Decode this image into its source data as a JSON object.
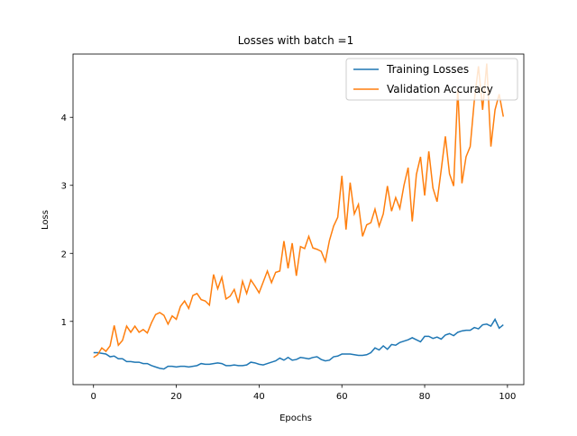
{
  "chart_data": {
    "type": "line",
    "title": "Losses with batch =1",
    "x_label": "Epochs",
    "y_label": "Loss",
    "x": [
      0,
      1,
      2,
      3,
      4,
      5,
      6,
      7,
      8,
      9,
      10,
      11,
      12,
      13,
      14,
      15,
      16,
      17,
      18,
      19,
      20,
      21,
      22,
      23,
      24,
      25,
      26,
      27,
      28,
      29,
      30,
      31,
      32,
      33,
      34,
      35,
      36,
      37,
      38,
      39,
      40,
      41,
      42,
      43,
      44,
      45,
      46,
      47,
      48,
      49,
      50,
      51,
      52,
      53,
      54,
      55,
      56,
      57,
      58,
      59,
      60,
      61,
      62,
      63,
      64,
      65,
      66,
      67,
      68,
      69,
      70,
      71,
      72,
      73,
      74,
      75,
      76,
      77,
      78,
      79,
      80,
      81,
      82,
      83,
      84,
      85,
      86,
      87,
      88,
      89,
      90,
      91,
      92,
      93,
      94,
      95,
      96,
      97,
      98,
      99
    ],
    "series": [
      {
        "name": "Training Losses",
        "color": "#1f77b4",
        "values": [
          0.54,
          0.54,
          0.53,
          0.52,
          0.48,
          0.49,
          0.45,
          0.45,
          0.41,
          0.41,
          0.4,
          0.4,
          0.38,
          0.38,
          0.35,
          0.33,
          0.31,
          0.3,
          0.34,
          0.34,
          0.33,
          0.34,
          0.34,
          0.33,
          0.34,
          0.35,
          0.38,
          0.37,
          0.37,
          0.38,
          0.39,
          0.38,
          0.35,
          0.35,
          0.36,
          0.35,
          0.35,
          0.36,
          0.4,
          0.39,
          0.37,
          0.36,
          0.38,
          0.4,
          0.42,
          0.46,
          0.43,
          0.47,
          0.43,
          0.44,
          0.47,
          0.46,
          0.45,
          0.47,
          0.48,
          0.44,
          0.42,
          0.43,
          0.48,
          0.49,
          0.52,
          0.52,
          0.52,
          0.51,
          0.5,
          0.5,
          0.51,
          0.54,
          0.61,
          0.58,
          0.64,
          0.59,
          0.66,
          0.65,
          0.69,
          0.71,
          0.73,
          0.76,
          0.73,
          0.7,
          0.78,
          0.78,
          0.75,
          0.77,
          0.74,
          0.8,
          0.82,
          0.79,
          0.84,
          0.86,
          0.87,
          0.87,
          0.91,
          0.89,
          0.95,
          0.96,
          0.93,
          1.03,
          0.9,
          0.95
        ]
      },
      {
        "name": "Validation Accuracy",
        "color": "#ff7f0e",
        "values": [
          0.47,
          0.51,
          0.61,
          0.56,
          0.64,
          0.94,
          0.65,
          0.72,
          0.93,
          0.84,
          0.93,
          0.84,
          0.88,
          0.83,
          0.98,
          1.1,
          1.13,
          1.09,
          0.96,
          1.08,
          1.03,
          1.22,
          1.3,
          1.19,
          1.38,
          1.41,
          1.32,
          1.3,
          1.24,
          1.69,
          1.48,
          1.65,
          1.33,
          1.37,
          1.47,
          1.27,
          1.59,
          1.41,
          1.61,
          1.52,
          1.42,
          1.58,
          1.74,
          1.57,
          1.72,
          1.74,
          2.18,
          1.78,
          2.15,
          1.67,
          2.1,
          2.07,
          2.25,
          2.08,
          2.06,
          2.03,
          1.88,
          2.19,
          2.4,
          2.53,
          3.14,
          2.35,
          3.04,
          2.58,
          2.72,
          2.25,
          2.42,
          2.45,
          2.65,
          2.4,
          2.58,
          2.99,
          2.62,
          2.82,
          2.66,
          3.0,
          3.26,
          2.47,
          3.16,
          3.42,
          2.85,
          3.5,
          2.96,
          2.76,
          3.23,
          3.72,
          3.17,
          2.99,
          4.42,
          3.03,
          3.42,
          3.57,
          4.25,
          4.75,
          4.11,
          4.79,
          3.57,
          4.11,
          4.34,
          4.01
        ]
      }
    ],
    "xlim": [
      -4.95,
      103.95
    ],
    "ylim": [
      0.07,
      4.93
    ],
    "xticks": [
      0,
      20,
      40,
      60,
      80,
      100
    ],
    "yticks": [
      1,
      2,
      3,
      4
    ],
    "legend": "upper right",
    "grid": false
  }
}
